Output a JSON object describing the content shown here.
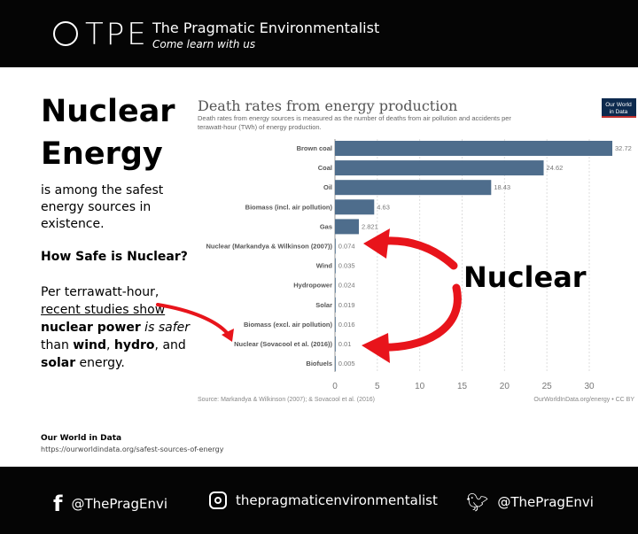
{
  "header": {
    "logo": "TPE",
    "title": "The Pragmatic Environmentalist",
    "tagline": "Come learn with us"
  },
  "left": {
    "heading1": "Nuclear",
    "heading2": "Energy",
    "intro": "is among the safest energy sources in existence.",
    "question": "How Safe is Nuclear?",
    "p1": "Per terrawatt-hour,",
    "p2": "recent studies show",
    "p3a": "nuclear power",
    "p3b": " is safer",
    "p4a": "than ",
    "p4b": "wind",
    "p4c": ", ",
    "p4d": "hydro",
    "p4e": ", and",
    "p5a": "solar",
    "p5b": " energy."
  },
  "source": {
    "name": "Our World in Data",
    "url": "https://ourworldindata.org/safest-sources-of-energy"
  },
  "annotation": "Nuclear",
  "chart_data": {
    "type": "bar",
    "orientation": "horizontal",
    "title": "Death rates from energy production",
    "subtitle1": "Death rates from energy sources is measured as the number of deaths from air pollution and accidents per",
    "subtitle2": "terawatt-hour (TWh) of energy production.",
    "badge1": "Our World",
    "badge2": "in Data",
    "categories": [
      "Brown coal",
      "Coal",
      "Oil",
      "Biomass (incl. air pollution)",
      "Gas",
      "Nuclear (Markandya & Wilkinson (2007))",
      "Wind",
      "Hydropower",
      "Solar",
      "Biomass (excl. air pollution)",
      "Nuclear (Sovacool et al. (2016))",
      "Biofuels"
    ],
    "values": [
      32.72,
      24.62,
      18.43,
      4.63,
      2.821,
      0.074,
      0.035,
      0.024,
      0.019,
      0.016,
      0.01,
      0.005
    ],
    "labels": [
      "32.72",
      "24.62",
      "18.43",
      "4.63",
      "2.821",
      "0.074",
      "0.035",
      "0.024",
      "0.019",
      "0.016",
      "0.01",
      "0.005"
    ],
    "xticks": [
      0,
      5,
      10,
      15,
      20,
      25,
      30
    ],
    "xlim": [
      0,
      33
    ],
    "source_note": "Source: Markandya & Wilkinson (2007); & Sovacool et al. (2016)",
    "credit": "OurWorldInData.org/energy • CC BY",
    "bar_color": "#4e6d8c"
  },
  "footer": {
    "facebook": "@ThePragEnvi",
    "instagram": "thepragmaticenvironmentalist",
    "twitter": "@ThePragEnvi"
  }
}
